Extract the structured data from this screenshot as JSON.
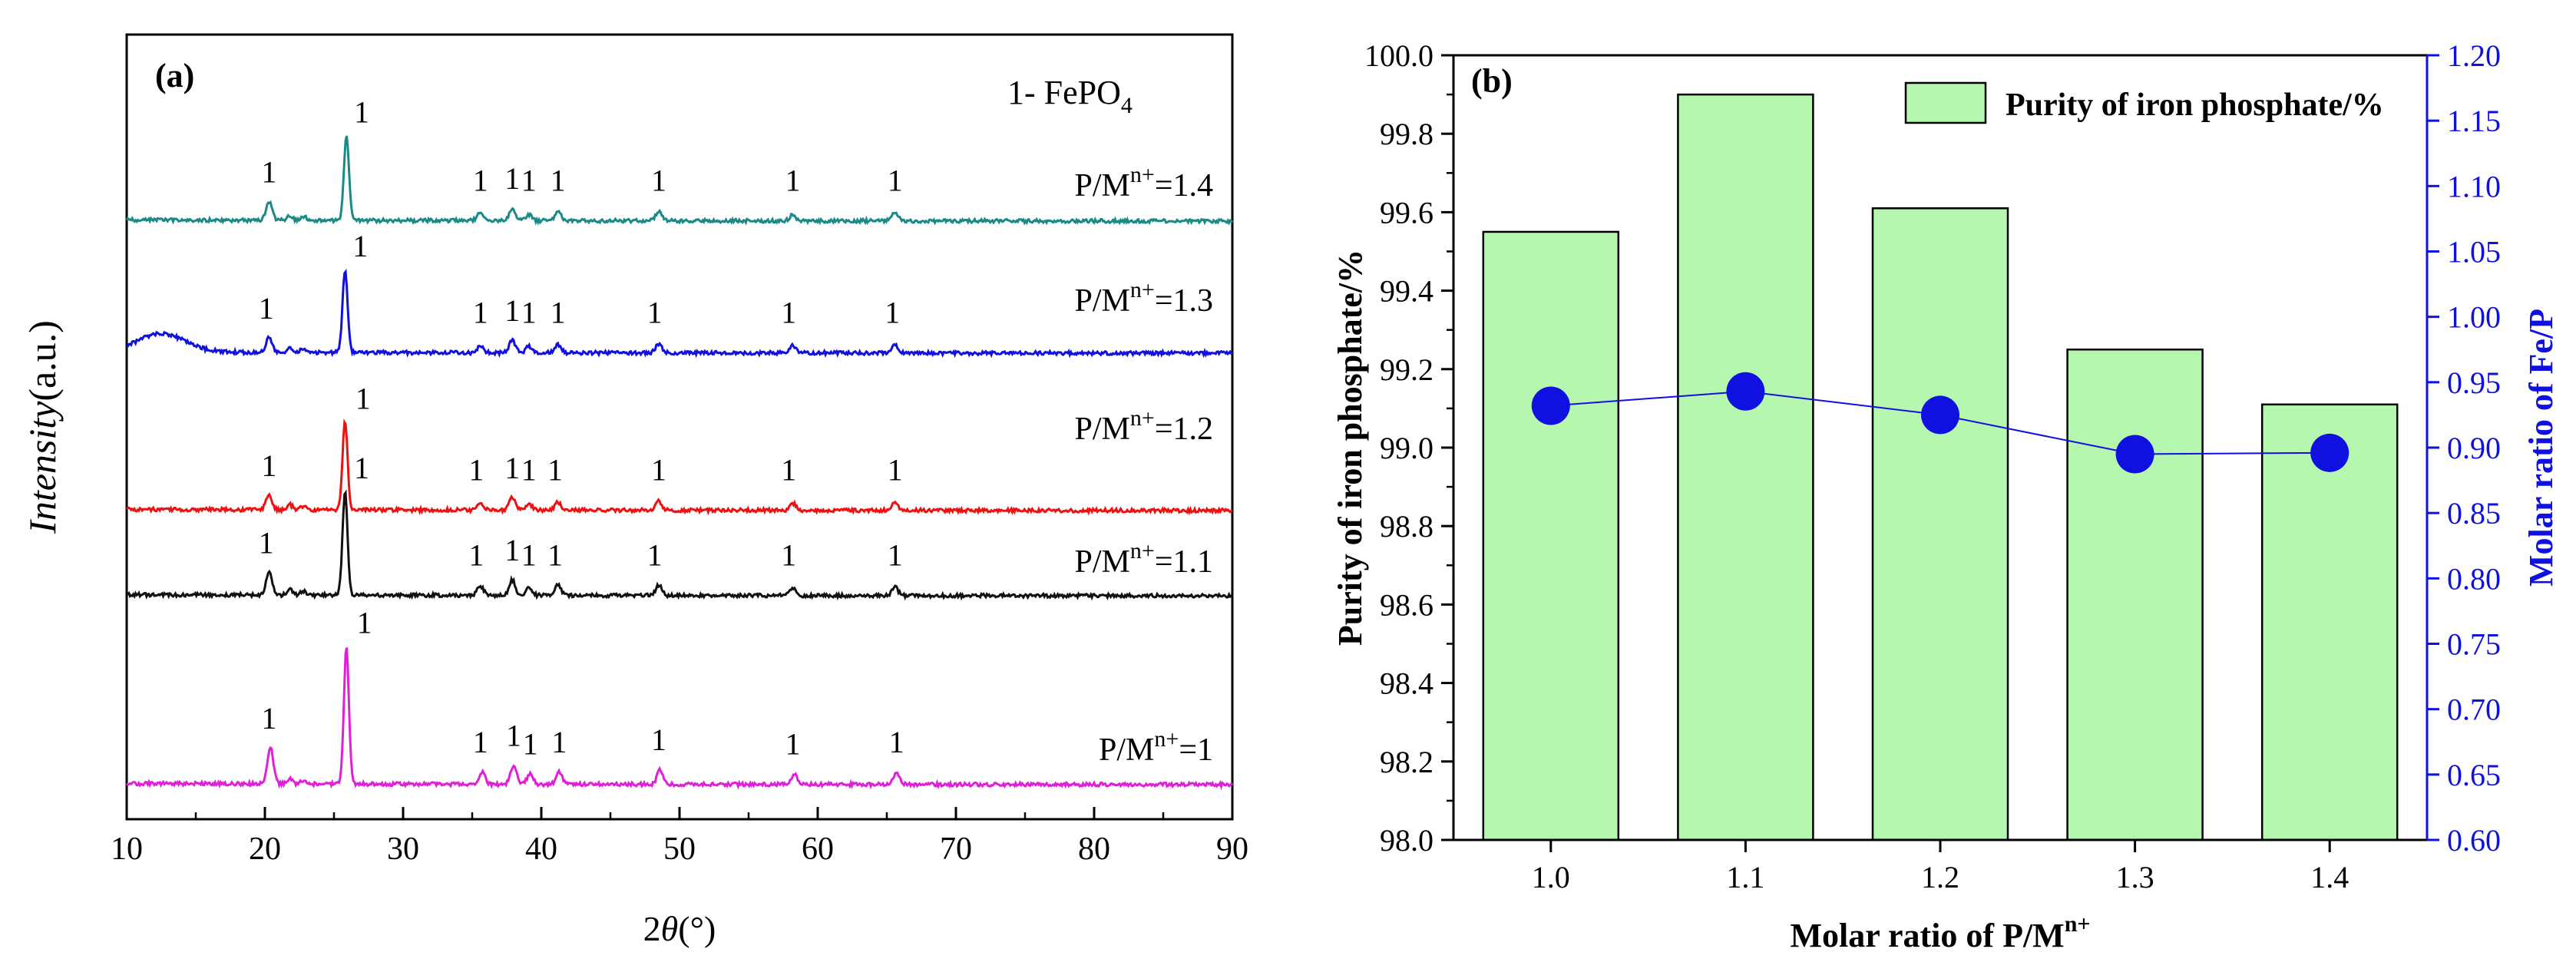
{
  "chart_data": [
    {
      "type": "line",
      "panel_label": "(a)",
      "title": "",
      "xlabel_parts": [
        "2",
        "θ",
        "(°)"
      ],
      "ylabel_parts": [
        "Intensity",
        "(a.u.)"
      ],
      "xlim": [
        10,
        90
      ],
      "xticks": [
        10,
        20,
        30,
        40,
        50,
        60,
        70,
        80,
        90
      ],
      "grid": false,
      "legend_main": "1- FePO",
      "legend_sub": "4",
      "series": [
        {
          "name": "P/M=1.4",
          "label_main": "P/M",
          "label_sup": "n+",
          "label_value": "=1.4",
          "color": "#1a8a86",
          "peaks_x": [
            20.3,
            25.9,
            35.6,
            37.9,
            39.1,
            41.2,
            48.5,
            58.2,
            65.6
          ],
          "peaks_h": [
            0.18,
            0.82,
            0.08,
            0.12,
            0.06,
            0.09,
            0.09,
            0.06,
            0.08
          ],
          "peak_labels_x": [
            20.3,
            27.0,
            35.6,
            37.9,
            39.1,
            41.2,
            48.5,
            58.2,
            65.6
          ],
          "peak_label": "1"
        },
        {
          "name": "P/M=1.3",
          "label_main": "P/M",
          "label_sup": "n+",
          "label_value": "=1.3",
          "color": "#1010e0",
          "peaks_x": [
            20.3,
            25.8,
            35.6,
            37.9,
            39.1,
            41.2,
            48.5,
            58.2,
            65.6
          ],
          "peaks_h": [
            0.14,
            0.8,
            0.07,
            0.12,
            0.06,
            0.08,
            0.09,
            0.07,
            0.08
          ],
          "peak_labels_x": [
            20.1,
            26.9,
            35.6,
            37.9,
            39.1,
            41.2,
            48.2,
            57.9,
            65.4
          ],
          "peak_label": "1"
        },
        {
          "name": "P/M=1.2",
          "label_main": "P/M",
          "label_sup": "n+",
          "label_value": "=1.2",
          "color": "#ee1111",
          "peaks_x": [
            20.3,
            25.8,
            35.6,
            37.9,
            39.1,
            41.2,
            48.5,
            58.2,
            65.6
          ],
          "peaks_h": [
            0.14,
            0.85,
            0.07,
            0.12,
            0.06,
            0.08,
            0.09,
            0.07,
            0.08
          ],
          "peak_labels_x": [
            20.3,
            27.1,
            35.3,
            37.9,
            39.1,
            41.0,
            48.5,
            57.9,
            65.6
          ],
          "peak_label": "1"
        },
        {
          "name": "P/M=1.1",
          "label_main": "P/M",
          "label_sup": "n+",
          "label_value": "=1.1",
          "color": "#111111",
          "peaks_x": [
            20.3,
            25.8,
            35.6,
            37.9,
            39.1,
            41.2,
            48.5,
            58.2,
            65.6
          ],
          "peaks_h": [
            0.22,
            1.0,
            0.09,
            0.15,
            0.08,
            0.1,
            0.1,
            0.07,
            0.08
          ],
          "peak_labels_x": [
            20.1,
            27.0,
            35.3,
            37.9,
            39.1,
            41.0,
            48.2,
            57.9,
            65.6
          ],
          "peak_label": "1"
        },
        {
          "name": "P/M=1",
          "label_main": "P/M",
          "label_sup": "n+",
          "label_value": "=1",
          "color": "#e020d8",
          "peaks_x": [
            20.4,
            25.9,
            35.7,
            38.0,
            39.2,
            41.3,
            48.6,
            58.3,
            65.7
          ],
          "peaks_h": [
            0.35,
            1.33,
            0.12,
            0.18,
            0.1,
            0.12,
            0.14,
            0.1,
            0.12
          ],
          "peak_labels_x": [
            20.3,
            27.2,
            35.6,
            38.0,
            39.2,
            41.3,
            48.5,
            58.2,
            65.7
          ],
          "peak_label": "1"
        }
      ]
    },
    {
      "type": "bar",
      "panel_label": "(b)",
      "title": "",
      "categories": [
        "1.0",
        "1.1",
        "1.2",
        "1.3",
        "1.4"
      ],
      "values": [
        99.55,
        99.9,
        99.61,
        99.25,
        99.11
      ],
      "bar_color": "#b6f7b0",
      "ylim": [
        98.0,
        100.0
      ],
      "yticks": [
        "98.0",
        "98.2",
        "98.4",
        "98.6",
        "98.8",
        "99.0",
        "99.2",
        "99.4",
        "99.6",
        "99.8",
        "100.0"
      ],
      "ylabel": "Purity of iron phosphate/%",
      "xlabel_main": "Molar ratio of  P/M",
      "xlabel_sup": "n+",
      "legend": "Purity of iron phosphate/%",
      "legend_position": "top-right",
      "grid": false,
      "secondary": {
        "type": "line",
        "name": "Molar ratio of Fe/P",
        "values": [
          0.932,
          0.943,
          0.925,
          0.895,
          0.896
        ],
        "ylim": [
          0.6,
          1.2
        ],
        "yticks": [
          "0.60",
          "0.65",
          "0.70",
          "0.75",
          "0.80",
          "0.85",
          "0.90",
          "0.95",
          "1.00",
          "1.05",
          "1.10",
          "1.15",
          "1.20"
        ],
        "ylabel": "Molar ratio of Fe/P",
        "color": "#1010e0"
      }
    }
  ]
}
